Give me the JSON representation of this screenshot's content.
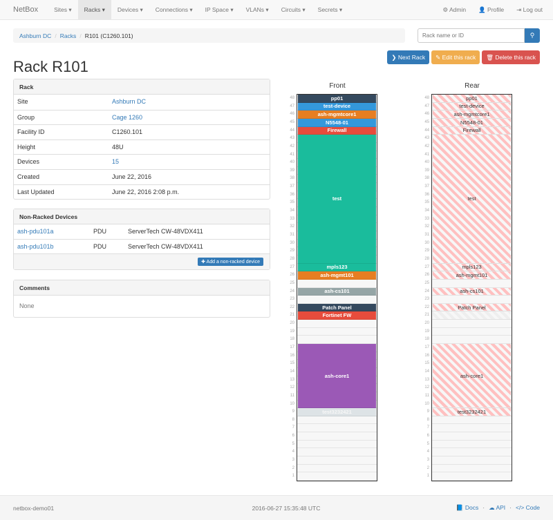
{
  "nav": {
    "brand": "NetBox",
    "items": [
      "Sites ▾",
      "Racks ▾",
      "Devices ▾",
      "Connections ▾",
      "IP Space ▾",
      "VLANs ▾",
      "Circuits ▾",
      "Secrets ▾"
    ],
    "active": 1,
    "right": [
      {
        "icon": "gear-icon",
        "label": "⚙ Admin"
      },
      {
        "icon": "user-icon",
        "label": "👤 Profile"
      },
      {
        "icon": "logout-icon",
        "label": "⇥ Log out"
      }
    ]
  },
  "breadcrumb": [
    "Ashburn DC",
    "Racks",
    "R101 (C1260.101)"
  ],
  "search": {
    "placeholder": "Rack name or ID"
  },
  "buttons": {
    "next": "❯ Next Rack",
    "edit": "✎ Edit this rack",
    "delete": "🗑 Delete this rack"
  },
  "colors": {
    "primary": "#337ab7",
    "warning": "#f0ad4e",
    "danger": "#d9534f"
  },
  "title": "Rack R101",
  "rack_panel": {
    "heading": "Rack",
    "rows": [
      {
        "k": "Site",
        "v": "Ashburn DC",
        "link": true
      },
      {
        "k": "Group",
        "v": "Cage 1260",
        "link": true
      },
      {
        "k": "Facility ID",
        "v": "C1260.101"
      },
      {
        "k": "Height",
        "v": "48U"
      },
      {
        "k": "Devices",
        "v": "15",
        "link": true
      },
      {
        "k": "Created",
        "v": "June 22, 2016"
      },
      {
        "k": "Last Updated",
        "v": "June 22, 2016 2:08 p.m."
      }
    ]
  },
  "nonracked": {
    "heading": "Non-Racked Devices",
    "rows": [
      {
        "name": "ash-pdu101a",
        "role": "PDU",
        "type": "ServerTech CW-48VDX411"
      },
      {
        "name": "ash-pdu101b",
        "role": "PDU",
        "type": "ServerTech CW-48VDX411"
      }
    ],
    "add_label": "✚ Add a non-racked device"
  },
  "comments": {
    "heading": "Comments",
    "body": "None"
  },
  "rack": {
    "height": 48,
    "front_label": "Front",
    "rear_label": "Rear",
    "devices": [
      {
        "name": "pp01",
        "u": 48,
        "size": 1,
        "color": "#34495e"
      },
      {
        "name": "test-device",
        "u": 47,
        "size": 1,
        "color": "#3498db"
      },
      {
        "name": "ash-mgmtcore1",
        "u": 46,
        "size": 1,
        "color": "#e67e22"
      },
      {
        "name": "N5548-01",
        "u": 45,
        "size": 1,
        "color": "#3498db"
      },
      {
        "name": "Firewall",
        "u": 44,
        "size": 1,
        "color": "#e74c3c"
      },
      {
        "name": "test",
        "u": 28,
        "size": 16,
        "color": "#1abc9c"
      },
      {
        "name": "mpls123",
        "u": 27,
        "size": 1,
        "color": "#1abc9c"
      },
      {
        "name": "ash-mgmt101",
        "u": 26,
        "size": 1,
        "color": "#e67e22"
      },
      {
        "name": "ash-cs101",
        "u": 24,
        "size": 1,
        "color": "#95a5a6"
      },
      {
        "name": "Patch Panel",
        "u": 22,
        "size": 1,
        "color": "#34495e"
      },
      {
        "name": "Fortinet FW",
        "u": 21,
        "size": 1,
        "color": "#e74c3c",
        "half": true
      },
      {
        "name": "ash-core1",
        "u": 10,
        "size": 8,
        "color": "#9b59b6"
      },
      {
        "name": "test3232421",
        "u": 9,
        "size": 1,
        "color": "#dde3e6"
      }
    ]
  },
  "footer": {
    "host": "netbox-demo01",
    "time": "2016-06-27 15:35:48 UTC",
    "links": [
      "📘 Docs",
      "☁ API",
      "</> Code"
    ]
  }
}
